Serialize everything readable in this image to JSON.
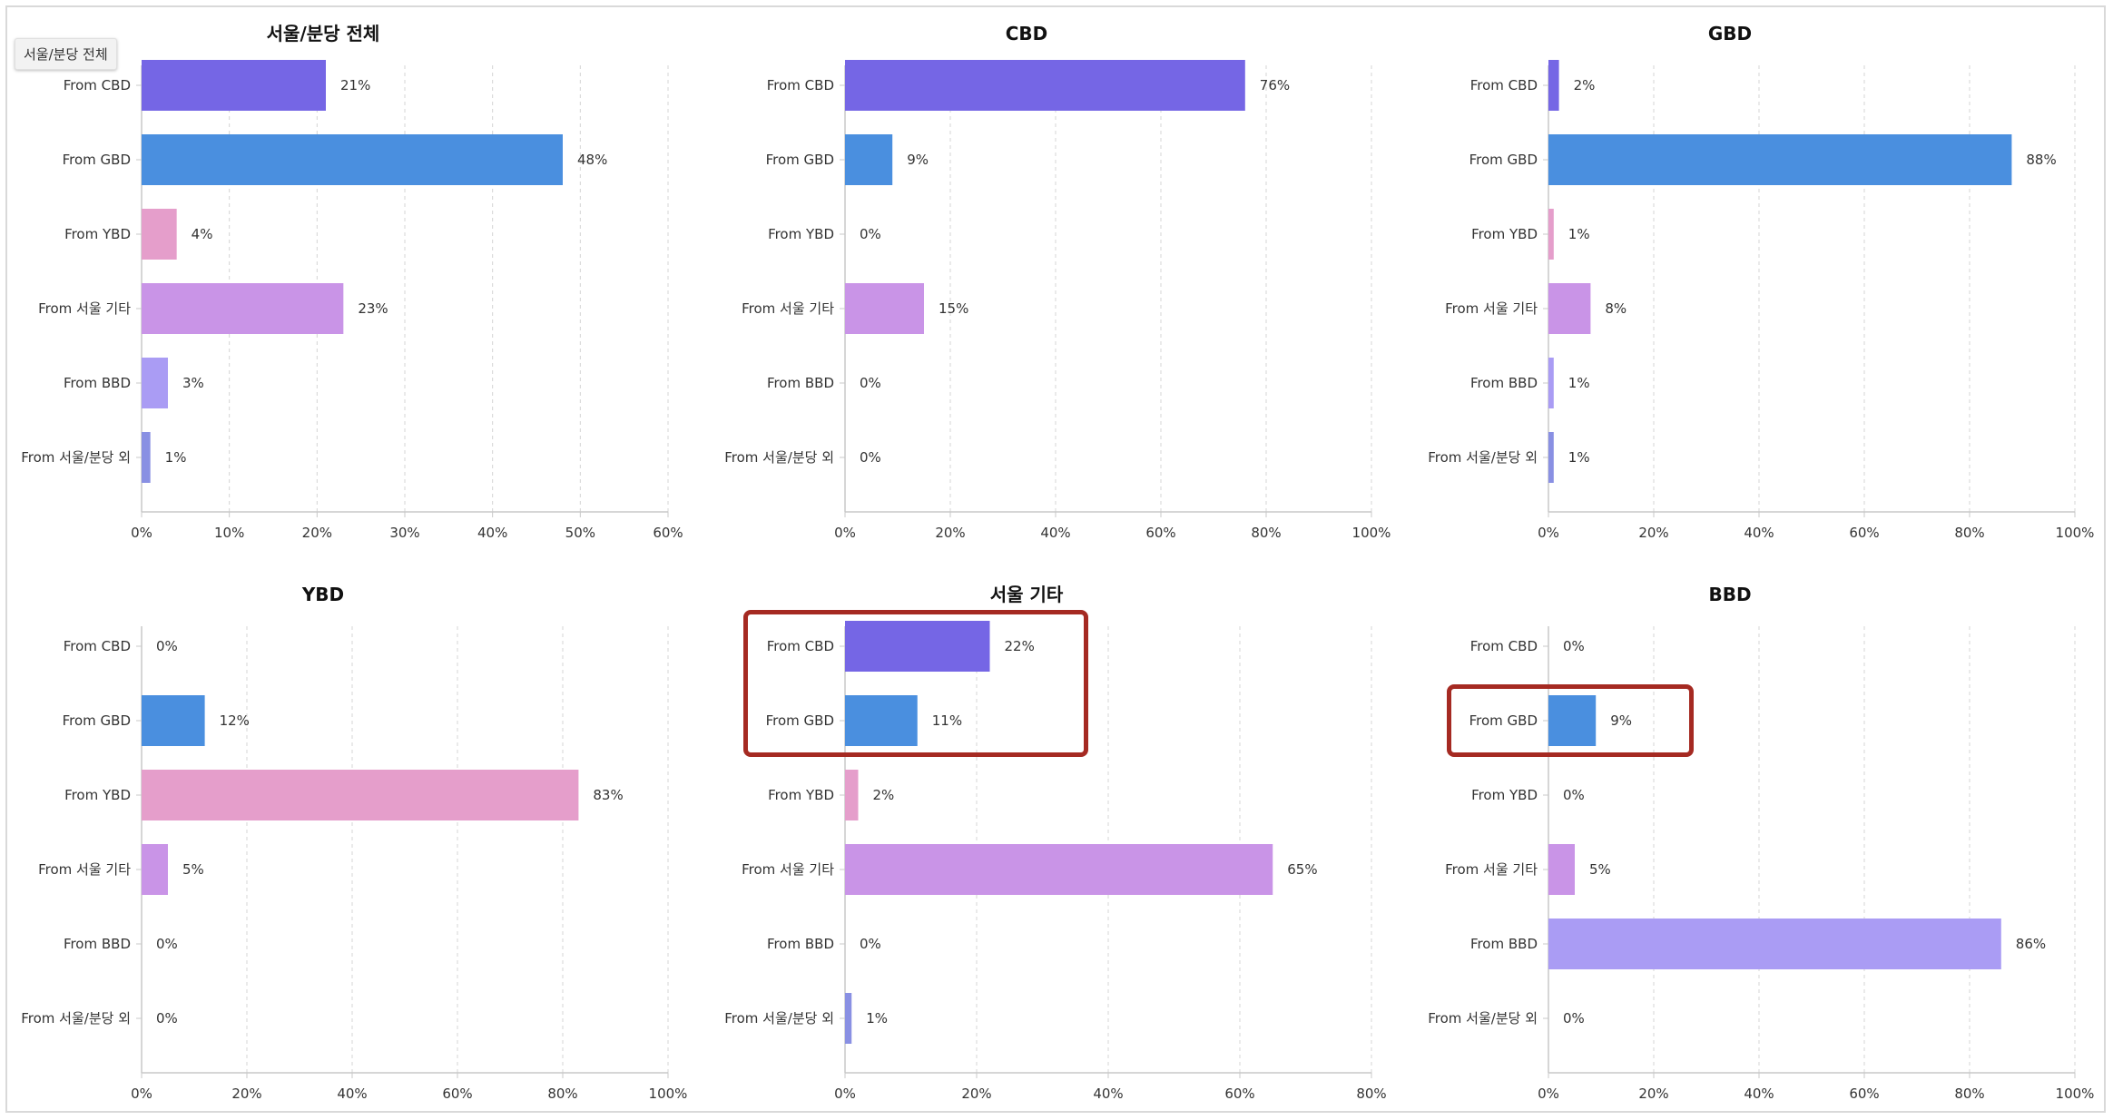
{
  "tooltip": "서울/분당 전체",
  "colors": {
    "cbd": "#7566e5",
    "gbd": "#4a8fdf",
    "ybd": "#e59ecb",
    "seoul_other": "#c994e7",
    "bbd": "#aa9cf4",
    "outside": "#8990e3",
    "highlight": "#a52a22"
  },
  "chart_data": [
    {
      "type": "bar",
      "orientation": "horizontal",
      "title": "서울/분당 전체",
      "categories": [
        "From CBD",
        "From GBD",
        "From YBD",
        "From 서울 기타",
        "From BBD",
        "From 서울/분당 외"
      ],
      "values": [
        21,
        48,
        4,
        23,
        3,
        1
      ],
      "value_labels": [
        "21%",
        "48%",
        "4%",
        "23%",
        "3%",
        "1%"
      ],
      "xlim": [
        0,
        60
      ],
      "xticks": [
        0,
        10,
        20,
        30,
        40,
        50,
        60
      ],
      "xtick_labels": [
        "0%",
        "10%",
        "20%",
        "30%",
        "40%",
        "50%",
        "60%"
      ],
      "grid": "vertical-dashed",
      "highlight": []
    },
    {
      "type": "bar",
      "orientation": "horizontal",
      "title": "CBD",
      "categories": [
        "From CBD",
        "From GBD",
        "From YBD",
        "From 서울 기타",
        "From BBD",
        "From 서울/분당 외"
      ],
      "values": [
        76,
        9,
        0,
        15,
        0,
        0
      ],
      "value_labels": [
        "76%",
        "9%",
        "0%",
        "15%",
        "0%",
        "0%"
      ],
      "xlim": [
        0,
        100
      ],
      "xticks": [
        0,
        20,
        40,
        60,
        80,
        100
      ],
      "xtick_labels": [
        "0%",
        "20%",
        "40%",
        "60%",
        "80%",
        "100%"
      ],
      "grid": "vertical-dashed",
      "highlight": []
    },
    {
      "type": "bar",
      "orientation": "horizontal",
      "title": "GBD",
      "categories": [
        "From CBD",
        "From GBD",
        "From YBD",
        "From 서울 기타",
        "From BBD",
        "From 서울/분당 외"
      ],
      "values": [
        2,
        88,
        1,
        8,
        1,
        1
      ],
      "value_labels": [
        "2%",
        "88%",
        "1%",
        "8%",
        "1%",
        "1%"
      ],
      "xlim": [
        0,
        100
      ],
      "xticks": [
        0,
        20,
        40,
        60,
        80,
        100
      ],
      "xtick_labels": [
        "0%",
        "20%",
        "40%",
        "60%",
        "80%",
        "100%"
      ],
      "grid": "vertical-dashed",
      "highlight": []
    },
    {
      "type": "bar",
      "orientation": "horizontal",
      "title": "YBD",
      "categories": [
        "From CBD",
        "From GBD",
        "From YBD",
        "From 서울 기타",
        "From BBD",
        "From 서울/분당 외"
      ],
      "values": [
        0,
        12,
        83,
        5,
        0,
        0
      ],
      "value_labels": [
        "0%",
        "12%",
        "83%",
        "5%",
        "0%",
        "0%"
      ],
      "xlim": [
        0,
        100
      ],
      "xticks": [
        0,
        20,
        40,
        60,
        80,
        100
      ],
      "xtick_labels": [
        "0%",
        "20%",
        "40%",
        "60%",
        "80%",
        "100%"
      ],
      "grid": "vertical-dashed",
      "highlight": []
    },
    {
      "type": "bar",
      "orientation": "horizontal",
      "title": "서울 기타",
      "categories": [
        "From CBD",
        "From GBD",
        "From YBD",
        "From 서울 기타",
        "From BBD",
        "From 서울/분당 외"
      ],
      "values": [
        22,
        11,
        2,
        65,
        0,
        1
      ],
      "value_labels": [
        "22%",
        "11%",
        "2%",
        "65%",
        "0%",
        "1%"
      ],
      "xlim": [
        0,
        80
      ],
      "xticks": [
        0,
        20,
        40,
        60,
        80
      ],
      "xtick_labels": [
        "0%",
        "20%",
        "40%",
        "60%",
        "80%"
      ],
      "grid": "vertical-dashed",
      "highlight": [
        0,
        1
      ]
    },
    {
      "type": "bar",
      "orientation": "horizontal",
      "title": "BBD",
      "categories": [
        "From CBD",
        "From GBD",
        "From YBD",
        "From 서울 기타",
        "From BBD",
        "From 서울/분당 외"
      ],
      "values": [
        0,
        9,
        0,
        5,
        86,
        0
      ],
      "value_labels": [
        "0%",
        "9%",
        "0%",
        "5%",
        "86%",
        "0%"
      ],
      "xlim": [
        0,
        100
      ],
      "xticks": [
        0,
        20,
        40,
        60,
        80,
        100
      ],
      "xtick_labels": [
        "0%",
        "20%",
        "40%",
        "60%",
        "80%",
        "100%"
      ],
      "grid": "vertical-dashed",
      "highlight": [
        1
      ]
    }
  ]
}
